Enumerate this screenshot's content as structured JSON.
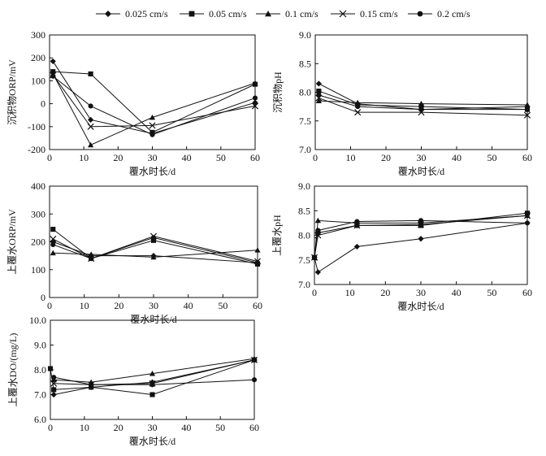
{
  "legend": {
    "items": [
      {
        "label": "0.025 cm/s",
        "marker": "diamond"
      },
      {
        "label": "0.05 cm/s",
        "marker": "square"
      },
      {
        "label": "0.1 cm/s",
        "marker": "triangle"
      },
      {
        "label": "0.15 cm/s",
        "marker": "x"
      },
      {
        "label": "0.2 cm/s",
        "marker": "circle"
      }
    ]
  },
  "chart_data": [
    {
      "type": "line",
      "title": "",
      "xlabel": "覆水时长/d",
      "ylabel": "沉积物ORP/mV",
      "xlim": [
        0,
        60
      ],
      "ylim": [
        -200,
        300
      ],
      "xticks": [
        0,
        10,
        20,
        30,
        40,
        50,
        60
      ],
      "yticks": [
        -200,
        -100,
        0,
        100,
        200,
        300
      ],
      "series": [
        {
          "name": "0.025 cm/s",
          "marker": "diamond",
          "x": [
            1,
            12,
            30,
            60
          ],
          "y": [
            185,
            -70,
            -130,
            5
          ]
        },
        {
          "name": "0.05 cm/s",
          "marker": "square",
          "x": [
            1,
            12,
            30,
            60
          ],
          "y": [
            140,
            130,
            -125,
            85
          ]
        },
        {
          "name": "0.1 cm/s",
          "marker": "triangle",
          "x": [
            1,
            12,
            30,
            60
          ],
          "y": [
            130,
            -180,
            -60,
            90
          ]
        },
        {
          "name": "0.15 cm/s",
          "marker": "x",
          "x": [
            1,
            12,
            30,
            60
          ],
          "y": [
            125,
            -100,
            -95,
            -10
          ]
        },
        {
          "name": "0.2 cm/s",
          "marker": "circle",
          "x": [
            1,
            12,
            30,
            60
          ],
          "y": [
            120,
            -10,
            -135,
            25
          ]
        }
      ]
    },
    {
      "type": "line",
      "title": "",
      "xlabel": "覆水时长/d",
      "ylabel": "沉积物pH",
      "xlim": [
        0,
        60
      ],
      "ylim": [
        7.0,
        9.0
      ],
      "xticks": [
        0,
        10,
        20,
        30,
        40,
        50,
        60
      ],
      "yticks": [
        7.0,
        7.5,
        8.0,
        8.5,
        9.0
      ],
      "series": [
        {
          "name": "0.025 cm/s",
          "marker": "diamond",
          "x": [
            1,
            12,
            30,
            60
          ],
          "y": [
            8.15,
            7.8,
            7.7,
            7.75
          ]
        },
        {
          "name": "0.05 cm/s",
          "marker": "square",
          "x": [
            1,
            12,
            30,
            60
          ],
          "y": [
            8.02,
            7.78,
            7.75,
            7.7
          ]
        },
        {
          "name": "0.1 cm/s",
          "marker": "triangle",
          "x": [
            1,
            12,
            30,
            60
          ],
          "y": [
            7.85,
            7.82,
            7.8,
            7.78
          ]
        },
        {
          "name": "0.15 cm/s",
          "marker": "x",
          "x": [
            1,
            12,
            30,
            60
          ],
          "y": [
            7.9,
            7.65,
            7.65,
            7.6
          ]
        },
        {
          "name": "0.2 cm/s",
          "marker": "circle",
          "x": [
            1,
            12,
            30,
            60
          ],
          "y": [
            7.95,
            7.75,
            7.7,
            7.7
          ]
        }
      ]
    },
    {
      "type": "line",
      "title": "",
      "xlabel": "覆水时长/d",
      "ylabel": "上覆水ORP/mV",
      "xlim": [
        0,
        60
      ],
      "ylim": [
        0,
        400
      ],
      "xticks": [
        0,
        10,
        20,
        30,
        40,
        50,
        60
      ],
      "yticks": [
        0,
        100,
        200,
        300,
        400
      ],
      "series": [
        {
          "name": "0.025 cm/s",
          "marker": "diamond",
          "x": [
            1,
            12,
            30,
            60
          ],
          "y": [
            200,
            150,
            150,
            125
          ]
        },
        {
          "name": "0.05 cm/s",
          "marker": "square",
          "x": [
            1,
            12,
            30,
            60
          ],
          "y": [
            245,
            140,
            205,
            120
          ]
        },
        {
          "name": "0.1 cm/s",
          "marker": "triangle",
          "x": [
            1,
            12,
            30,
            60
          ],
          "y": [
            160,
            155,
            145,
            170
          ]
        },
        {
          "name": "0.15 cm/s",
          "marker": "x",
          "x": [
            1,
            12,
            30,
            60
          ],
          "y": [
            210,
            140,
            220,
            130
          ]
        },
        {
          "name": "0.2 cm/s",
          "marker": "circle",
          "x": [
            1,
            12,
            30,
            60
          ],
          "y": [
            190,
            140,
            215,
            125
          ]
        }
      ]
    },
    {
      "type": "line",
      "title": "",
      "xlabel": "覆水时长/d",
      "ylabel": "上覆水pH",
      "xlim": [
        0,
        60
      ],
      "ylim": [
        7.0,
        9.0
      ],
      "xticks": [
        0,
        10,
        20,
        30,
        40,
        50,
        60
      ],
      "yticks": [
        7.0,
        7.5,
        8.0,
        8.5,
        9.0
      ],
      "series": [
        {
          "name": "0.025 cm/s",
          "marker": "diamond",
          "x": [
            0,
            1,
            12,
            30,
            60
          ],
          "y": [
            7.55,
            7.25,
            7.77,
            7.93,
            8.25
          ]
        },
        {
          "name": "0.05 cm/s",
          "marker": "square",
          "x": [
            0,
            1,
            12,
            30,
            60
          ],
          "y": [
            7.55,
            8.05,
            8.2,
            8.2,
            8.45
          ]
        },
        {
          "name": "0.1 cm/s",
          "marker": "triangle",
          "x": [
            0,
            1,
            12,
            30,
            60
          ],
          "y": [
            7.55,
            8.3,
            8.25,
            8.25,
            8.4
          ]
        },
        {
          "name": "0.15 cm/s",
          "marker": "x",
          "x": [
            0,
            1,
            12,
            30,
            60
          ],
          "y": [
            7.55,
            8.0,
            8.2,
            8.22,
            8.4
          ]
        },
        {
          "name": "0.2 cm/s",
          "marker": "circle",
          "x": [
            0,
            1,
            12,
            30,
            60
          ],
          "y": [
            7.55,
            8.1,
            8.28,
            8.3,
            8.25
          ]
        }
      ]
    },
    {
      "type": "line",
      "title": "",
      "xlabel": "覆水时长/d",
      "ylabel": "上覆水DO/(mg/L)",
      "xlim": [
        0,
        60
      ],
      "ylim": [
        6.0,
        10.0
      ],
      "xticks": [
        0,
        10,
        20,
        30,
        40,
        50,
        60
      ],
      "yticks": [
        6.0,
        7.0,
        8.0,
        9.0,
        10.0
      ],
      "series": [
        {
          "name": "0.025 cm/s",
          "marker": "diamond",
          "x": [
            1,
            12,
            30,
            60
          ],
          "y": [
            7.0,
            7.3,
            7.5,
            8.4
          ]
        },
        {
          "name": "0.05 cm/s",
          "marker": "square",
          "x": [
            0,
            1,
            12,
            30,
            60
          ],
          "y": [
            8.05,
            7.2,
            7.3,
            7.0,
            8.4
          ]
        },
        {
          "name": "0.1 cm/s",
          "marker": "triangle",
          "x": [
            1,
            12,
            30,
            60
          ],
          "y": [
            7.6,
            7.5,
            7.85,
            8.45
          ]
        },
        {
          "name": "0.15 cm/s",
          "marker": "x",
          "x": [
            1,
            12,
            30,
            60
          ],
          "y": [
            7.45,
            7.4,
            7.45,
            8.4
          ]
        },
        {
          "name": "0.2 cm/s",
          "marker": "circle",
          "x": [
            1,
            12,
            30,
            60
          ],
          "y": [
            7.7,
            7.4,
            7.4,
            7.6
          ]
        }
      ]
    }
  ]
}
